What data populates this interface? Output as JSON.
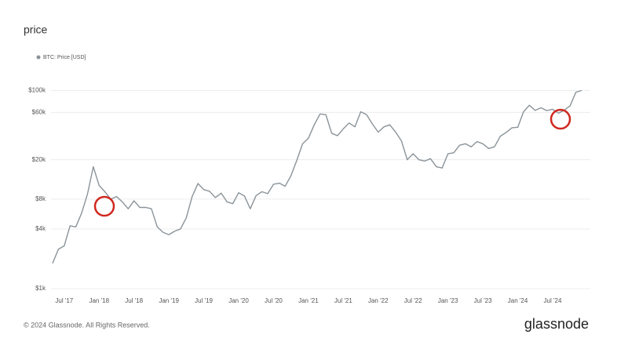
{
  "chart_data": {
    "type": "line",
    "title": "price",
    "footer": "© 2024 Glassnode. All Rights Reserved.",
    "brand": "glassnode",
    "log_scale": true,
    "grid": true,
    "legend": "top-left",
    "xlim": [
      "2017-05",
      "2024-12"
    ],
    "ylim": [
      1000,
      130000
    ],
    "yticks": [
      {
        "value": 1000,
        "label": "$1k"
      },
      {
        "value": 4000,
        "label": "$4k"
      },
      {
        "value": 8000,
        "label": "$8k"
      },
      {
        "value": 20000,
        "label": "$20k"
      },
      {
        "value": 60000,
        "label": "$60k"
      },
      {
        "value": 100000,
        "label": "$100k"
      }
    ],
    "xticks": [
      {
        "value": "2017-07",
        "label": "Jul '17"
      },
      {
        "value": "2018-01",
        "label": "Jan '18"
      },
      {
        "value": "2018-07",
        "label": "Jul '18"
      },
      {
        "value": "2019-01",
        "label": "Jan '19"
      },
      {
        "value": "2019-07",
        "label": "Jul '19"
      },
      {
        "value": "2020-01",
        "label": "Jan '20"
      },
      {
        "value": "2020-07",
        "label": "Jul '20"
      },
      {
        "value": "2021-01",
        "label": "Jan '21"
      },
      {
        "value": "2021-07",
        "label": "Jul '21"
      },
      {
        "value": "2022-01",
        "label": "Jan '22"
      },
      {
        "value": "2022-07",
        "label": "Jul '22"
      },
      {
        "value": "2023-01",
        "label": "Jan '23"
      },
      {
        "value": "2023-07",
        "label": "Jul '23"
      },
      {
        "value": "2024-01",
        "label": "Jan '24"
      },
      {
        "value": "2024-07",
        "label": "Jul '24"
      }
    ],
    "x": [
      "2017-05",
      "2017-06",
      "2017-07",
      "2017-08",
      "2017-09",
      "2017-10",
      "2017-11",
      "2017-12",
      "2018-01",
      "2018-02",
      "2018-03",
      "2018-04",
      "2018-05",
      "2018-06",
      "2018-07",
      "2018-08",
      "2018-09",
      "2018-10",
      "2018-11",
      "2018-12",
      "2019-01",
      "2019-02",
      "2019-03",
      "2019-04",
      "2019-05",
      "2019-06",
      "2019-07",
      "2019-08",
      "2019-09",
      "2019-10",
      "2019-11",
      "2019-12",
      "2020-01",
      "2020-02",
      "2020-03",
      "2020-04",
      "2020-05",
      "2020-06",
      "2020-07",
      "2020-08",
      "2020-09",
      "2020-10",
      "2020-11",
      "2020-12",
      "2021-01",
      "2021-02",
      "2021-03",
      "2021-04",
      "2021-05",
      "2021-06",
      "2021-07",
      "2021-08",
      "2021-09",
      "2021-10",
      "2021-11",
      "2021-12",
      "2022-01",
      "2022-02",
      "2022-03",
      "2022-04",
      "2022-05",
      "2022-06",
      "2022-07",
      "2022-08",
      "2022-09",
      "2022-10",
      "2022-11",
      "2022-12",
      "2023-01",
      "2023-02",
      "2023-03",
      "2023-04",
      "2023-05",
      "2023-06",
      "2023-07",
      "2023-08",
      "2023-09",
      "2023-10",
      "2023-11",
      "2023-12",
      "2024-01",
      "2024-02",
      "2024-03",
      "2024-04",
      "2024-05",
      "2024-06",
      "2024-07",
      "2024-08",
      "2024-09",
      "2024-10",
      "2024-11",
      "2024-12"
    ],
    "series": [
      {
        "name": "BTC: Price [USD]",
        "color": "#8a9399",
        "values": [
          1800,
          2500,
          2700,
          4300,
          4200,
          5800,
          9000,
          17000,
          11000,
          9500,
          8000,
          8500,
          7500,
          6400,
          7700,
          6600,
          6600,
          6400,
          4200,
          3700,
          3500,
          3800,
          4000,
          5200,
          8500,
          11500,
          10000,
          9600,
          8300,
          9200,
          7500,
          7200,
          9300,
          8600,
          6400,
          8700,
          9500,
          9100,
          11300,
          11600,
          10800,
          13800,
          19700,
          29000,
          33000,
          45000,
          58000,
          57000,
          37000,
          35000,
          41000,
          47000,
          43000,
          61000,
          57000,
          46000,
          38000,
          43000,
          45000,
          38000,
          31000,
          20000,
          23000,
          20000,
          19400,
          20500,
          17000,
          16500,
          23000,
          23500,
          28000,
          29000,
          27000,
          30500,
          29000,
          26000,
          27000,
          34500,
          37700,
          42000,
          42500,
          61000,
          71000,
          63000,
          67000,
          62700,
          64600,
          59000,
          63300,
          70000,
          96000,
          100000
        ]
      }
    ]
  }
}
